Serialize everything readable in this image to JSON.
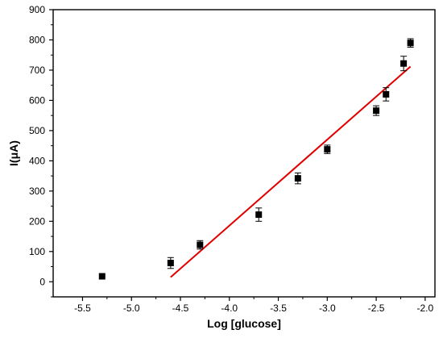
{
  "chart_data": {
    "type": "scatter",
    "xlabel": "Log [glucose]",
    "ylabel": "I(μA)",
    "xlim": [
      -5.8,
      -1.9
    ],
    "ylim": [
      -50,
      900
    ],
    "x_ticks": [
      -5.5,
      -5.0,
      -4.5,
      -4.0,
      -3.5,
      -3.0,
      -2.5,
      -2.0
    ],
    "x_tick_labels": [
      "-5.5",
      "-5.0",
      "-4.5",
      "-4.0",
      "-3.5",
      "-3.0",
      "-2.5",
      "-2.0"
    ],
    "y_ticks": [
      0,
      100,
      200,
      300,
      400,
      500,
      600,
      700,
      800,
      900
    ],
    "y_tick_labels": [
      "0",
      "100",
      "200",
      "300",
      "400",
      "500",
      "600",
      "700",
      "800",
      "900"
    ],
    "grid": false,
    "series": [
      {
        "type": "scatter",
        "marker": "square",
        "color": "#000000",
        "points": [
          {
            "x": -5.3,
            "y": 18,
            "err": 0
          },
          {
            "x": -4.6,
            "y": 62,
            "err": 18
          },
          {
            "x": -4.3,
            "y": 122,
            "err": 14
          },
          {
            "x": -3.7,
            "y": 222,
            "err": 22
          },
          {
            "x": -3.3,
            "y": 342,
            "err": 18
          },
          {
            "x": -3.0,
            "y": 438,
            "err": 14
          },
          {
            "x": -2.5,
            "y": 566,
            "err": 16
          },
          {
            "x": -2.4,
            "y": 620,
            "err": 22
          },
          {
            "x": -2.22,
            "y": 722,
            "err": 24
          },
          {
            "x": -2.15,
            "y": 790,
            "err": 14
          }
        ]
      },
      {
        "type": "line",
        "color": "#e00000",
        "x": [
          -4.6,
          -2.15
        ],
        "y": [
          15,
          712
        ]
      }
    ]
  }
}
